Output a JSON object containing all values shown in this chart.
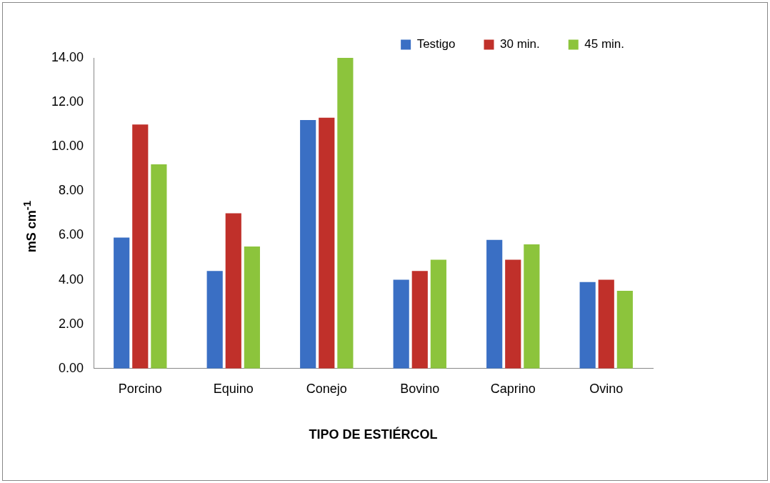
{
  "chart_data": {
    "type": "bar",
    "xlabel": "TIPO DE ESTIÉRCOL",
    "ylabel": "mS cm$^{-1}$",
    "categories": [
      "Porcino",
      "Equino",
      "Conejo",
      "Bovino",
      "Caprino",
      "Ovino"
    ],
    "series": [
      {
        "name": "Testigo",
        "color": "#3a6fc4",
        "values": [
          5.9,
          4.4,
          11.2,
          4.0,
          5.8,
          3.9
        ]
      },
      {
        "name": "30 min.",
        "color": "#c0302a",
        "values": [
          11.0,
          7.0,
          11.3,
          4.4,
          4.9,
          4.0
        ]
      },
      {
        "name": "45 min.",
        "color": "#8cc43c",
        "values": [
          9.2,
          5.5,
          14.0,
          4.9,
          5.6,
          3.5
        ]
      }
    ],
    "ylim": [
      0,
      14
    ],
    "yticks": [
      {
        "value": 0,
        "label": "0.00"
      },
      {
        "value": 2,
        "label": "2.00"
      },
      {
        "value": 4,
        "label": "4.00"
      },
      {
        "value": 6,
        "label": "6.00"
      },
      {
        "value": 8,
        "label": "8.00"
      },
      {
        "value": 10,
        "label": "10.00"
      },
      {
        "value": 12,
        "label": "12.00"
      },
      {
        "value": 14,
        "label": "14.00"
      }
    ],
    "grid": false,
    "legend": "top right"
  }
}
